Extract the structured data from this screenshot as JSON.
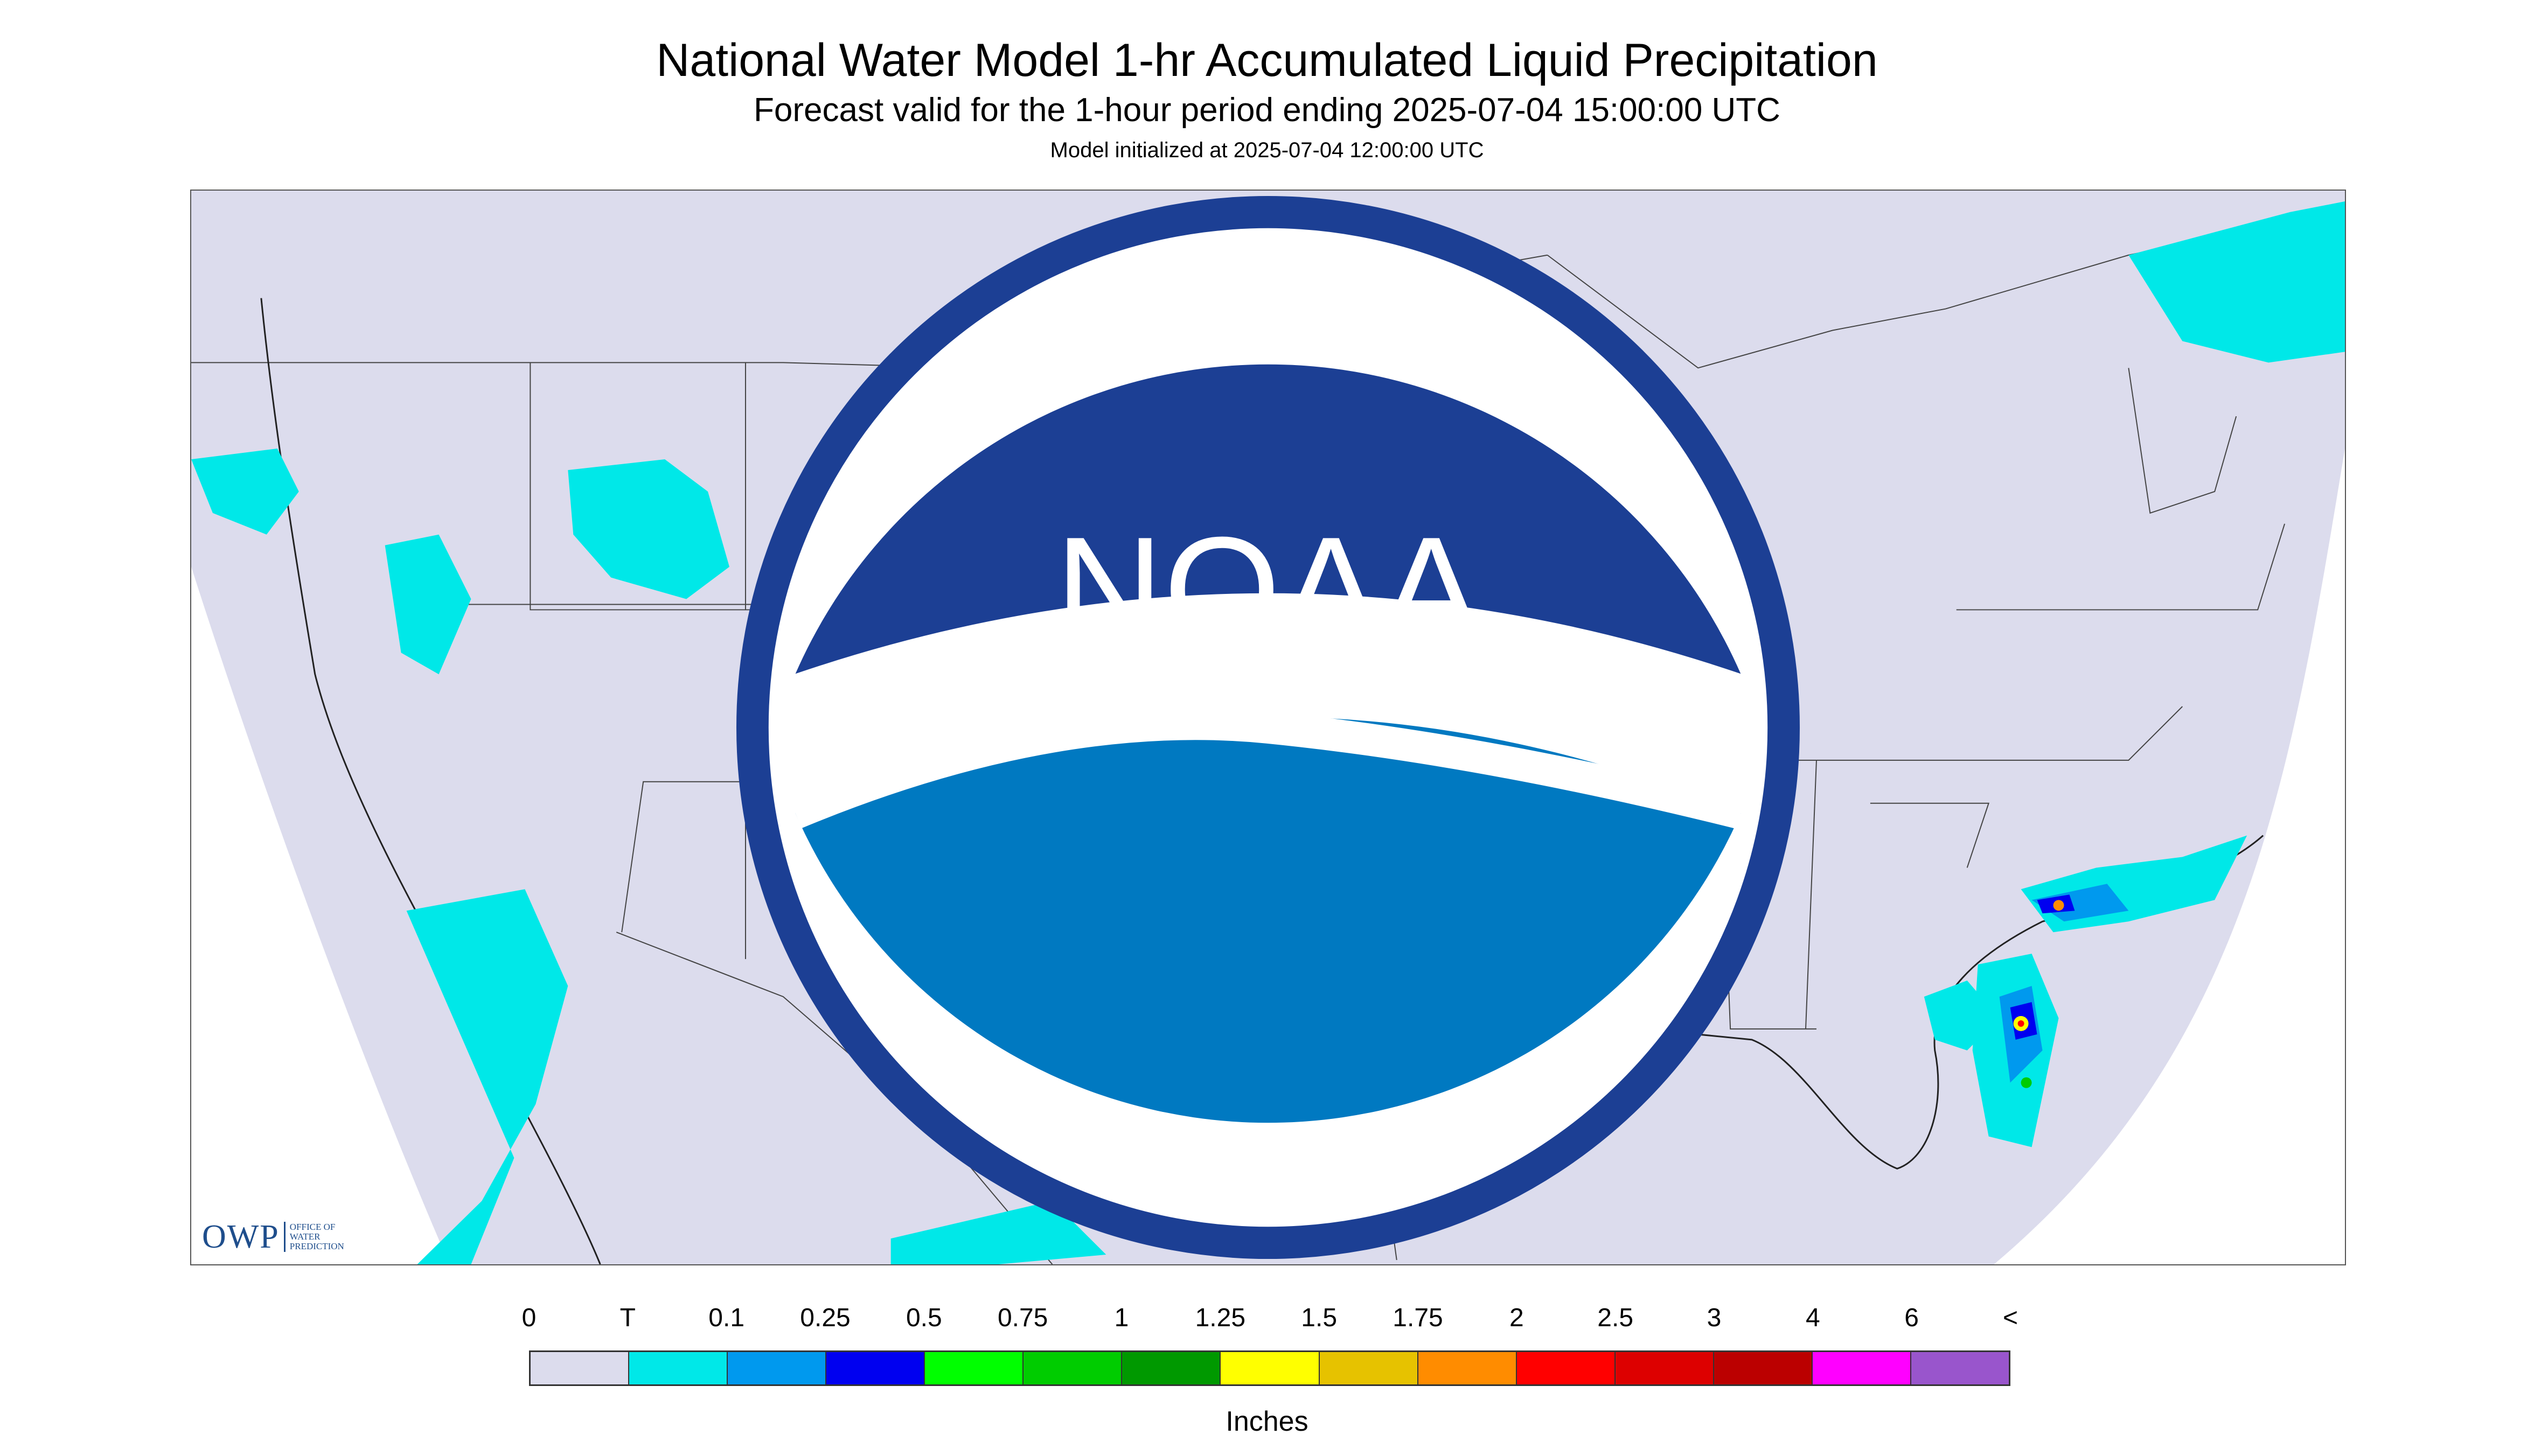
{
  "header": {
    "title": "National Water Model 1-hr Accumulated Liquid Precipitation",
    "subtitle": "Forecast valid for the 1-hour period ending 2025-07-04 15:00:00 UTC",
    "init": "Model initialized at 2025-07-04 12:00:00 UTC"
  },
  "map": {
    "background_color": "#dcdced",
    "land_color": "#dcdced",
    "outside_color": "#ffffff",
    "precip_regions": [
      {
        "area": "Lake Superior / Minnesota",
        "max_category": "0.25"
      },
      {
        "area": "Lake Michigan / Southern Michigan",
        "max_category": "0.5"
      },
      {
        "area": "Idaho / Montana",
        "max_category": "0.25"
      },
      {
        "area": "Central Texas",
        "max_category": "1"
      },
      {
        "area": "Florida / Atlantic coast",
        "max_category": "2"
      },
      {
        "area": "Carolina coast offshore",
        "max_category": "1.75"
      },
      {
        "area": "Gulf of California / Mexico",
        "max_category": "0.1"
      },
      {
        "area": "Quebec / Maine",
        "max_category": "0.1"
      }
    ]
  },
  "logos": {
    "owp_text": "OWP",
    "owp_lines": [
      "Office of",
      "Water",
      "Prediction"
    ],
    "noaa_text": "NOAA"
  },
  "legend": {
    "labels": [
      "0",
      "T",
      "0.1",
      "0.25",
      "0.5",
      "0.75",
      "1",
      "1.25",
      "1.5",
      "1.75",
      "2",
      "2.5",
      "3",
      "4",
      "6",
      "<"
    ],
    "colors": [
      "#dcdced",
      "#00e8e8",
      "#0099ee",
      "#0000f0",
      "#00ff00",
      "#00cc00",
      "#009900",
      "#ffff00",
      "#e6c200",
      "#ff8c00",
      "#ff0000",
      "#dd0000",
      "#bb0000",
      "#ff00ff",
      "#9955cc"
    ],
    "units": "Inches"
  }
}
